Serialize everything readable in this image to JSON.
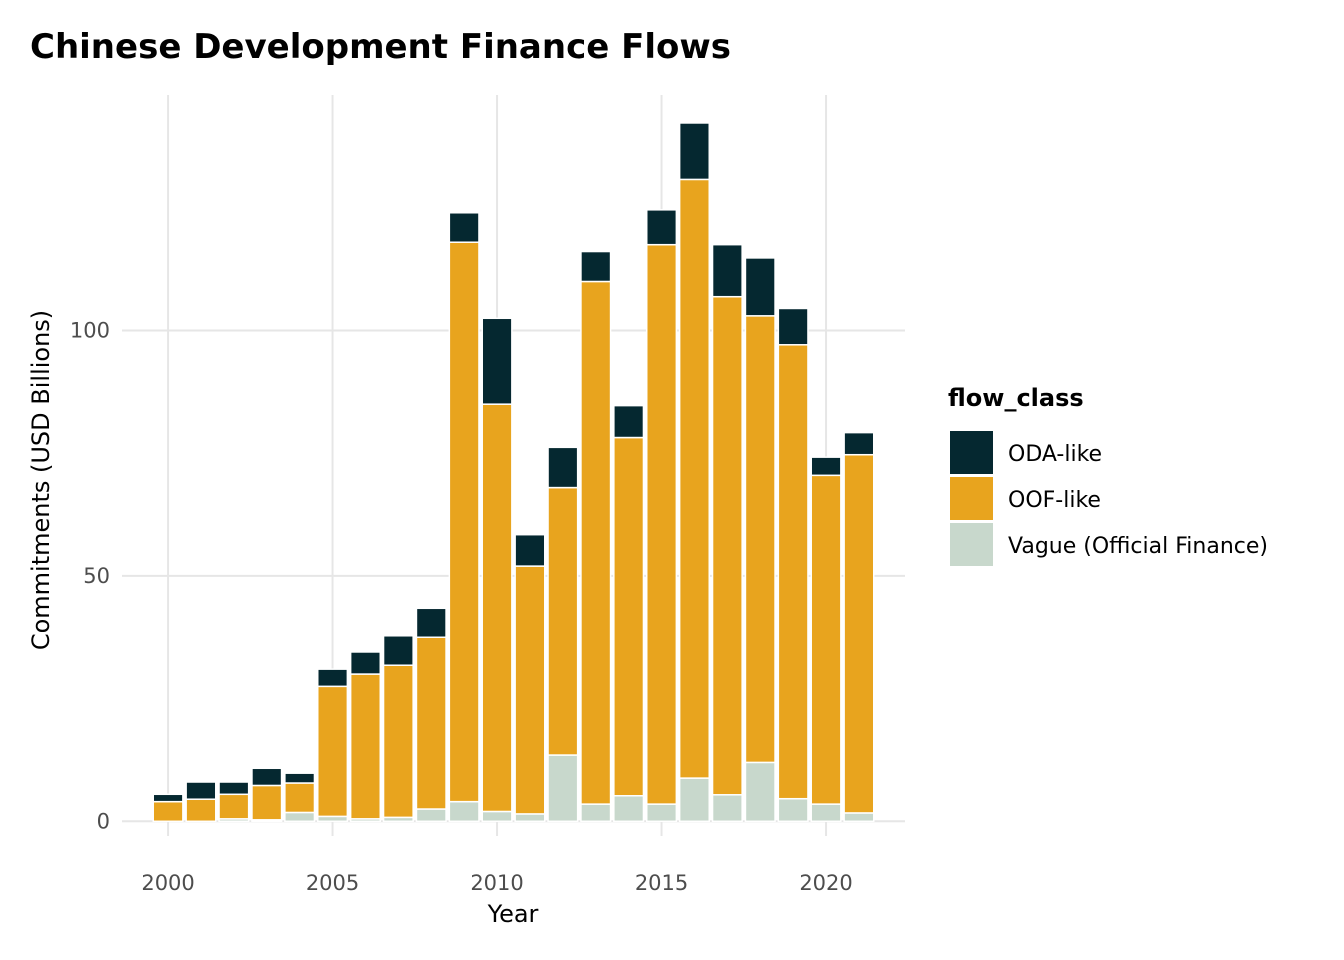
{
  "chart_data": {
    "type": "bar",
    "stacked": true,
    "title": "Chinese Development Finance Flows",
    "xlabel": "Year",
    "ylabel": "Commitments (USD Billions)",
    "x": [
      2000,
      2001,
      2002,
      2003,
      2004,
      2005,
      2006,
      2007,
      2008,
      2009,
      2010,
      2011,
      2012,
      2013,
      2014,
      2015,
      2016,
      2017,
      2018,
      2019,
      2020,
      2021
    ],
    "x_ticks": [
      "2000",
      "2005",
      "2010",
      "2015",
      "2020"
    ],
    "y_ticks": [
      "0",
      "50",
      "100"
    ],
    "xlim": [
      1998.6,
      2022.4
    ],
    "ylim": [
      -3,
      148
    ],
    "grid": true,
    "legend_title": "flow_class",
    "legend_position": "right",
    "series": [
      {
        "name": "Vague (Official Finance)",
        "color": "#c8d8cc",
        "values": [
          0,
          0,
          0.5,
          0.3,
          1.8,
          1.0,
          0.5,
          0.8,
          2.5,
          4.0,
          2.0,
          1.5,
          13.5,
          3.5,
          5.2,
          3.5,
          8.8,
          5.4,
          12.0,
          4.6,
          3.5,
          1.7
        ]
      },
      {
        "name": "OOF-like",
        "color": "#e8a41e",
        "values": [
          4.0,
          4.5,
          5.0,
          7.0,
          6.0,
          26.5,
          29.5,
          31.0,
          35.0,
          114.0,
          83.0,
          50.5,
          54.5,
          106.5,
          73.0,
          114.0,
          122.0,
          101.5,
          91.0,
          92.5,
          67.0,
          73.0
        ]
      },
      {
        "name": "ODA-like",
        "color": "#052830",
        "values": [
          1.5,
          3.5,
          2.5,
          3.5,
          2.0,
          3.5,
          4.5,
          6.0,
          5.9,
          6.0,
          17.5,
          6.4,
          8.2,
          6.1,
          6.5,
          7.1,
          11.5,
          10.6,
          11.8,
          7.4,
          3.7,
          4.5
        ]
      }
    ],
    "legend_order": [
      "ODA-like",
      "OOF-like",
      "Vague (Official Finance)"
    ]
  }
}
